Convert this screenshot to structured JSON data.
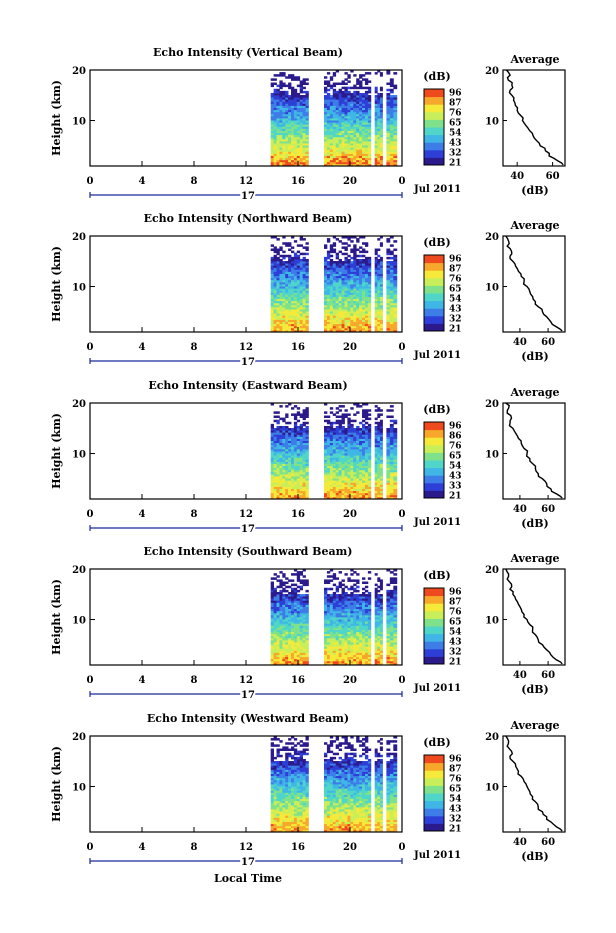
{
  "chart_data": [
    {
      "type": "heatmap",
      "title": "Echo Intensity (Vertical Beam)",
      "ylabel": "Height (km)",
      "ylim": [
        1,
        20
      ],
      "yticks": [
        "10",
        "20"
      ],
      "x_ticks": [
        "0",
        "4",
        "8",
        "12",
        "16",
        "20",
        "0"
      ],
      "xlim": [
        0,
        24
      ],
      "date_marker": "17",
      "date_label": "Jul 2011",
      "colorbar": {
        "unit": "(dB)",
        "ticks": [
          "96",
          "87",
          "76",
          "65",
          "54",
          "43",
          "32",
          "21"
        ]
      },
      "data_time_spans": [
        [
          13.9,
          16.8
        ],
        [
          18.0,
          21.6
        ],
        [
          21.9,
          22.5
        ],
        [
          22.8,
          23.6
        ]
      ],
      "average_profile": {
        "title": "Average",
        "xlabel": "(dB)",
        "xticks": [
          "40",
          "60"
        ],
        "xlim": [
          32,
          67
        ],
        "height_km": [
          1.2,
          2,
          3,
          4,
          5,
          6,
          7,
          8,
          9,
          10,
          11,
          12,
          13,
          14,
          15,
          16,
          17,
          18,
          19,
          20
        ],
        "db": [
          66,
          63,
          58,
          56,
          53,
          51,
          49,
          47,
          45,
          43,
          42,
          40,
          39,
          38,
          37,
          36,
          37,
          35,
          36,
          34
        ]
      }
    },
    {
      "type": "heatmap",
      "title": "Echo Intensity (Northward Beam)",
      "ylabel": "Height (km)",
      "ylim": [
        1,
        20
      ],
      "yticks": [
        "10",
        "20"
      ],
      "x_ticks": [
        "0",
        "4",
        "8",
        "12",
        "16",
        "20",
        "0"
      ],
      "xlim": [
        0,
        24
      ],
      "date_marker": "17",
      "date_label": "Jul 2011",
      "colorbar": {
        "unit": "(dB)",
        "ticks": [
          "96",
          "87",
          "76",
          "65",
          "54",
          "43",
          "32",
          "21"
        ]
      },
      "data_time_spans": [
        [
          13.9,
          16.8
        ],
        [
          18.0,
          21.6
        ],
        [
          21.9,
          22.5
        ],
        [
          22.8,
          23.6
        ]
      ],
      "average_profile": {
        "title": "Average",
        "xlabel": "(dB)",
        "xticks": [
          "40",
          "60"
        ],
        "xlim": [
          28,
          72
        ],
        "height_km": [
          1.2,
          2,
          3,
          4,
          5,
          6,
          7,
          8,
          9,
          10,
          11,
          12,
          13,
          14,
          15,
          16,
          17,
          18,
          19,
          20
        ],
        "db": [
          70,
          66,
          62,
          59,
          56,
          53,
          51,
          49,
          47,
          45,
          43,
          41,
          39,
          37,
          35,
          33,
          34,
          31,
          32,
          30
        ]
      }
    },
    {
      "type": "heatmap",
      "title": "Echo Intensity (Eastward Beam)",
      "ylabel": "Height (km)",
      "ylim": [
        1,
        20
      ],
      "yticks": [
        "10",
        "20"
      ],
      "x_ticks": [
        "0",
        "4",
        "8",
        "12",
        "16",
        "20",
        "0"
      ],
      "xlim": [
        0,
        24
      ],
      "date_marker": "17",
      "date_label": "Jul 2011",
      "colorbar": {
        "unit": "(dB)",
        "ticks": [
          "96",
          "86",
          "76",
          "65",
          "54",
          "43",
          "33",
          "21"
        ]
      },
      "data_time_spans": [
        [
          13.9,
          16.8
        ],
        [
          18.0,
          21.6
        ],
        [
          21.9,
          22.5
        ],
        [
          22.8,
          23.6
        ]
      ],
      "average_profile": {
        "title": "Average",
        "xlabel": "(dB)",
        "xticks": [
          "40",
          "60"
        ],
        "xlim": [
          28,
          72
        ],
        "height_km": [
          1.2,
          2,
          3,
          4,
          5,
          6,
          7,
          8,
          9,
          10,
          11,
          12,
          13,
          14,
          15,
          16,
          17,
          18,
          19,
          20
        ],
        "db": [
          70,
          66,
          62,
          59,
          56,
          53,
          51,
          49,
          47,
          45,
          43,
          41,
          39,
          37,
          35,
          33,
          34,
          31,
          32,
          30
        ]
      }
    },
    {
      "type": "heatmap",
      "title": "Echo Intensity (Southward Beam)",
      "ylabel": "Height (km)",
      "ylim": [
        1,
        20
      ],
      "yticks": [
        "10",
        "20"
      ],
      "x_ticks": [
        "0",
        "4",
        "8",
        "12",
        "16",
        "20",
        "0"
      ],
      "xlim": [
        0,
        24
      ],
      "date_marker": "17",
      "date_label": "Jul 2011",
      "colorbar": {
        "unit": "(dB)",
        "ticks": [
          "96",
          "87",
          "76",
          "65",
          "54",
          "43",
          "32",
          "21"
        ]
      },
      "data_time_spans": [
        [
          13.9,
          16.8
        ],
        [
          18.0,
          21.6
        ],
        [
          21.9,
          22.5
        ],
        [
          22.8,
          23.6
        ]
      ],
      "average_profile": {
        "title": "Average",
        "xlabel": "(dB)",
        "xticks": [
          "40",
          "60"
        ],
        "xlim": [
          28,
          72
        ],
        "height_km": [
          1.2,
          2,
          3,
          4,
          5,
          6,
          7,
          8,
          9,
          10,
          11,
          12,
          13,
          14,
          15,
          16,
          17,
          18,
          19,
          20
        ],
        "db": [
          70,
          66,
          62,
          59,
          56,
          53,
          51,
          49,
          47,
          45,
          43,
          41,
          39,
          37,
          35,
          33,
          34,
          31,
          32,
          30
        ]
      }
    },
    {
      "type": "heatmap",
      "title": "Echo Intensity (Westward Beam)",
      "ylabel": "Height (km)",
      "ylim": [
        1,
        20
      ],
      "yticks": [
        "10",
        "20"
      ],
      "x_ticks": [
        "0",
        "4",
        "8",
        "12",
        "16",
        "20",
        "0"
      ],
      "xlim": [
        0,
        24
      ],
      "date_marker": "17",
      "date_label": "Jul 2011",
      "xlabel": "Local Time",
      "colorbar": {
        "unit": "(dB)",
        "ticks": [
          "96",
          "87",
          "76",
          "65",
          "54",
          "43",
          "32",
          "21"
        ]
      },
      "data_time_spans": [
        [
          13.9,
          16.8
        ],
        [
          18.0,
          21.6
        ],
        [
          21.9,
          22.5
        ],
        [
          22.8,
          23.6
        ]
      ],
      "average_profile": {
        "title": "Average",
        "xlabel": "(dB)",
        "xticks": [
          "40",
          "60"
        ],
        "xlim": [
          28,
          72
        ],
        "height_km": [
          1.2,
          2,
          3,
          4,
          5,
          6,
          7,
          8,
          9,
          10,
          11,
          12,
          13,
          14,
          15,
          16,
          17,
          18,
          19,
          20
        ],
        "db": [
          70,
          66,
          62,
          59,
          56,
          53,
          51,
          49,
          47,
          45,
          43,
          41,
          39,
          37,
          35,
          33,
          34,
          31,
          32,
          30
        ]
      }
    }
  ],
  "colormap": [
    "#2b1a8c",
    "#2d3fd6",
    "#3d7de8",
    "#3fb6e6",
    "#4fd6c8",
    "#7fe28a",
    "#c8ee5a",
    "#f5ea3a",
    "#f7a82a",
    "#ef4a1e"
  ]
}
